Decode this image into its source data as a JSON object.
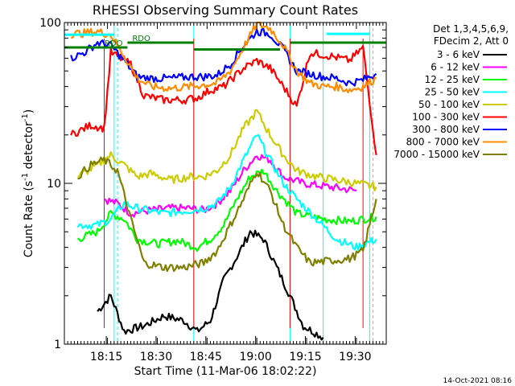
{
  "chart_data": {
    "type": "line",
    "title": "RHESSI Observing Summary Count Rates",
    "xlabel": "Start Time (11-Mar-06 18:02:22)",
    "ylabel": "Count Rate (s",
    "ylabel_sup": "-1",
    "ylabel_tail": " detector",
    "ylabel_sup2": "-1",
    "ylabel_end": ")",
    "y_scale": "log",
    "ylim": [
      1,
      100
    ],
    "xlim_minutes": [
      0,
      97
    ],
    "x_tick_labels": [
      "18:15",
      "18:30",
      "18:45",
      "19:00",
      "19:15",
      "19:30"
    ],
    "x_tick_minutes": [
      12.63,
      27.63,
      42.63,
      57.63,
      72.63,
      87.63
    ],
    "y_tick_labels": [
      "1",
      "10",
      "100"
    ],
    "y_tick_values": [
      1,
      10,
      100
    ],
    "legend_header": [
      "Det 1,3,4,5,6,9,",
      "FDecim 2, Att 0"
    ],
    "legend_position": "right",
    "series": [
      {
        "name": "3 - 6 keV",
        "color": "#000000",
        "x": [
          10,
          14,
          18,
          24,
          30,
          36,
          40,
          44,
          48,
          52,
          56,
          60,
          64,
          68,
          72,
          78
        ],
        "y": [
          1.6,
          2.0,
          1.2,
          1.3,
          1.5,
          1.4,
          1.2,
          1.4,
          2.5,
          3.5,
          5.0,
          4.5,
          3.0,
          2.0,
          1.3,
          1.1
        ]
      },
      {
        "name": "6 - 12 keV",
        "color": "#ff00ff",
        "x": [
          12,
          16,
          20,
          26,
          32,
          38,
          42,
          46,
          50,
          54,
          58,
          62,
          66,
          72,
          80,
          88
        ],
        "y": [
          8.0,
          7.5,
          6.5,
          6.8,
          7.0,
          7.0,
          6.8,
          7.5,
          9.0,
          12.0,
          15.0,
          14.0,
          11.0,
          10.0,
          9.5,
          9.0
        ]
      },
      {
        "name": "12 - 25 keV",
        "color": "#00ff00",
        "x": [
          4,
          10,
          14,
          18,
          22,
          28,
          34,
          40,
          44,
          48,
          52,
          56,
          60,
          64,
          70,
          78,
          86,
          94
        ],
        "y": [
          4.5,
          5.0,
          6.5,
          6.0,
          4.5,
          4.2,
          4.4,
          4.0,
          4.5,
          5.5,
          8.0,
          11.0,
          12.0,
          9.0,
          6.5,
          6.0,
          5.8,
          6.2
        ]
      },
      {
        "name": "25 - 50 keV",
        "color": "#00ffff",
        "x": [
          4,
          10,
          14,
          18,
          22,
          30,
          38,
          42,
          46,
          50,
          54,
          58,
          62,
          66,
          70,
          76,
          82,
          88,
          94
        ],
        "y": [
          5.5,
          5.5,
          6.0,
          7.5,
          7.0,
          6.5,
          6.8,
          7.0,
          7.5,
          9.5,
          14.0,
          20.0,
          14.0,
          10.0,
          8.0,
          6.0,
          4.5,
          4.0,
          4.5
        ]
      },
      {
        "name": "50 - 100 keV",
        "color": "#cccc00",
        "x": [
          4,
          10,
          14,
          18,
          22,
          26,
          32,
          38,
          42,
          46,
          50,
          54,
          58,
          62,
          66,
          70,
          76,
          82,
          88,
          94
        ],
        "y": [
          11,
          13,
          15,
          13,
          11,
          11.5,
          10.5,
          11,
          11,
          12,
          15,
          22,
          28,
          20,
          15,
          12,
          11,
          10.5,
          10,
          9.5
        ]
      },
      {
        "name": "100 - 300 keV",
        "color": "#ff0000",
        "x": [
          2,
          8,
          12,
          14,
          20,
          24,
          30,
          36,
          40,
          44,
          48,
          54,
          58,
          62,
          66,
          70,
          74,
          80,
          86,
          90,
          94
        ],
        "y": [
          20,
          23,
          22,
          65,
          55,
          35,
          33,
          33,
          34,
          38,
          40,
          52,
          58,
          52,
          40,
          30,
          65,
          62,
          58,
          70,
          15
        ]
      },
      {
        "name": "300 - 800 keV",
        "color": "#0000ff",
        "x": [
          2,
          6,
          10,
          14,
          18,
          22,
          26,
          32,
          38,
          42,
          46,
          50,
          54,
          58,
          62,
          66,
          70,
          74,
          78,
          82,
          86,
          90,
          94
        ],
        "y": [
          60,
          65,
          75,
          72,
          58,
          46,
          45,
          45,
          46,
          46,
          47,
          55,
          72,
          88,
          85,
          68,
          50,
          48,
          46,
          45,
          42,
          44,
          48
        ]
      },
      {
        "name": "800 - 7000 keV",
        "color": "#ff8c00",
        "x": [
          2,
          6,
          10,
          14,
          18,
          22,
          26,
          32,
          38,
          42,
          46,
          50,
          54,
          58,
          62,
          66,
          70,
          74,
          78,
          82,
          86,
          90,
          94
        ],
        "y": [
          85,
          86,
          88,
          84,
          62,
          45,
          40,
          39,
          40,
          41,
          42,
          50,
          70,
          98,
          92,
          72,
          50,
          42,
          40,
          40,
          38,
          40,
          45
        ]
      },
      {
        "name": "7000 - 15000 keV",
        "color": "#808000",
        "x": [
          4,
          8,
          12,
          16,
          20,
          24,
          30,
          36,
          42,
          46,
          50,
          54,
          58,
          62,
          66,
          70,
          74,
          80,
          86,
          90,
          94
        ],
        "y": [
          11,
          13,
          14,
          12,
          6,
          3.2,
          3.0,
          3.0,
          3.2,
          3.8,
          5.5,
          8.0,
          12.0,
          9.0,
          5.5,
          4.0,
          3.2,
          3.3,
          3.4,
          3.8,
          8.0
        ]
      }
    ],
    "saa_bars": [
      {
        "label": "RDO",
        "color": "#008000",
        "x0": 0,
        "x1": 19,
        "y": 70
      },
      {
        "label": "RDO",
        "color": "#008000",
        "x0": 19,
        "x1": 39,
        "y": 75
      },
      {
        "label": "",
        "color": "#008000",
        "x0": 39,
        "x1": 65,
        "y": 68
      },
      {
        "label": "",
        "color": "#008000",
        "x0": 68,
        "x1": 97,
        "y": 75
      }
    ],
    "high_bars": [
      {
        "color": "#00ffff",
        "x0": 0,
        "x1": 15,
        "y": 84
      },
      {
        "color": "#00ffff",
        "x0": 79,
        "x1": 92,
        "y": 85
      }
    ],
    "cyan_vlines": [
      0,
      15,
      39,
      68,
      78,
      92
    ],
    "cyan_dashed": [
      16,
      93
    ],
    "red_vlines": [
      12,
      39,
      68,
      90
    ],
    "grid": false
  },
  "footer": {
    "timestamp": "14-Oct-2021 08:16"
  }
}
